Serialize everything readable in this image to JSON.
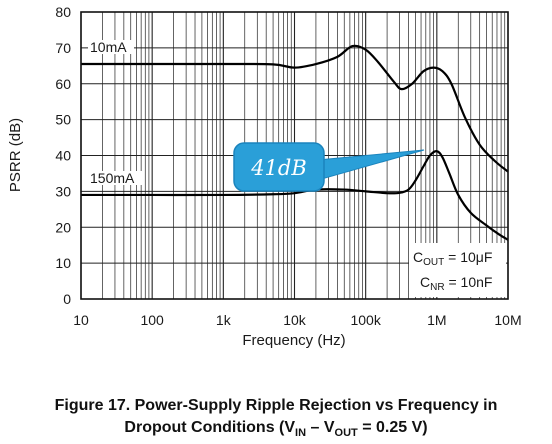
{
  "chart_data": {
    "type": "line",
    "xlabel": "Frequency (Hz)",
    "ylabel": "PSRR (dB)",
    "xscale": "log",
    "xlim": [
      10,
      10000000
    ],
    "ylim": [
      0,
      80
    ],
    "x_ticks": [
      {
        "value": 10,
        "label": "10"
      },
      {
        "value": 100,
        "label": "100"
      },
      {
        "value": 1000,
        "label": "1k"
      },
      {
        "value": 10000,
        "label": "10k"
      },
      {
        "value": 100000,
        "label": "100k"
      },
      {
        "value": 1000000,
        "label": "1M"
      },
      {
        "value": 10000000,
        "label": "10M"
      }
    ],
    "y_ticks": [
      {
        "value": 0,
        "label": "0"
      },
      {
        "value": 10,
        "label": "10"
      },
      {
        "value": 20,
        "label": "20"
      },
      {
        "value": 30,
        "label": "30"
      },
      {
        "value": 40,
        "label": "40"
      },
      {
        "value": 50,
        "label": "50"
      },
      {
        "value": 60,
        "label": "60"
      },
      {
        "value": 70,
        "label": "70"
      },
      {
        "value": 80,
        "label": "80"
      }
    ],
    "grid": true,
    "series": [
      {
        "name": "10mA",
        "x": [
          10,
          100,
          1000,
          5000,
          10000,
          20000,
          40000,
          65000,
          100000,
          150000,
          250000,
          320000,
          450000,
          650000,
          900000,
          1200000,
          1600000,
          2500000,
          4000000,
          6500000,
          10000000
        ],
        "y": [
          65.5,
          65.5,
          65.5,
          65.4,
          64.5,
          65.5,
          67.5,
          70.5,
          69.5,
          66,
          60.5,
          58.5,
          60,
          63.5,
          64.5,
          63.5,
          60,
          50.5,
          43,
          38.5,
          35.5
        ]
      },
      {
        "name": "150mA",
        "x": [
          10,
          100,
          1000,
          5000,
          10000,
          20000,
          50000,
          100000,
          200000,
          300000,
          400000,
          500000,
          650000,
          800000,
          1000000,
          1200000,
          1500000,
          2000000,
          3000000,
          5000000,
          7500000,
          10000000
        ],
        "y": [
          29,
          29,
          29,
          29.2,
          29.5,
          30.5,
          30.5,
          30,
          29.5,
          29.6,
          30.5,
          33,
          37,
          40,
          41.2,
          39.5,
          35,
          29,
          24,
          20.5,
          18,
          16.5
        ]
      }
    ],
    "annotations": {
      "conditions_line1": "COUT = 10μF",
      "conditions_line2": "CNR = 10nF",
      "callout": "41dB"
    },
    "caption_line1": "Figure 17. Power-Supply Ripple Rejection vs Frequency in",
    "caption_line2": "Dropout Conditions (VIN – VOUT = 0.25 V)"
  }
}
